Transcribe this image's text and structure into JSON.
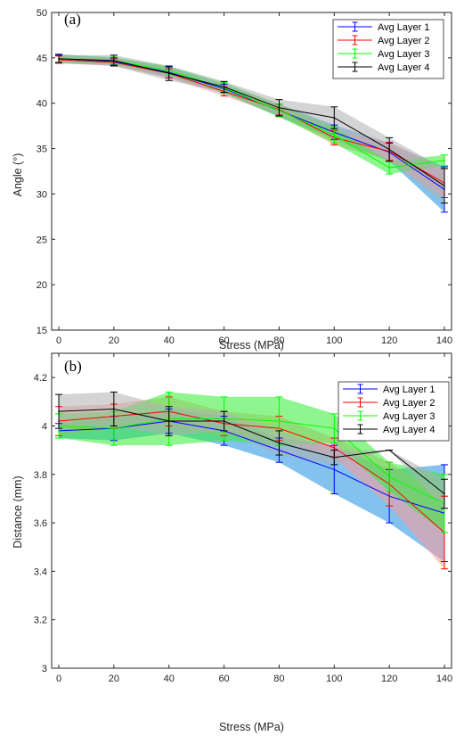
{
  "chart_data": [
    {
      "type": "line",
      "panel_label": "(a)",
      "xlabel": "Stress (MPa)",
      "ylabel": "Angle (°)",
      "xlim": [
        0,
        140
      ],
      "ylim": [
        15,
        50
      ],
      "x": [
        0,
        20,
        40,
        60,
        80,
        100,
        120,
        140
      ],
      "xticks": [
        "0",
        "20",
        "40",
        "60",
        "80",
        "100",
        "120",
        "140"
      ],
      "yticks": [
        "15",
        "20",
        "25",
        "30",
        "35",
        "40",
        "45",
        "50"
      ],
      "legend_position": "top-right",
      "series": [
        {
          "name": "Avg Layer 1",
          "color": "#0000ff",
          "band": "#1e8fe0",
          "values": [
            44.9,
            44.6,
            43.4,
            41.6,
            39.2,
            36.8,
            34.6,
            30.5
          ],
          "err": [
            0.5,
            0.4,
            0.6,
            0.5,
            0.7,
            0.8,
            1.0,
            2.5
          ]
        },
        {
          "name": "Avg Layer 2",
          "color": "#ff0000",
          "band": "#ff9a9a",
          "values": [
            44.8,
            44.5,
            43.3,
            41.3,
            39.3,
            36.2,
            34.7,
            31.2
          ],
          "err": [
            0.4,
            0.4,
            0.5,
            0.5,
            0.6,
            0.8,
            1.0,
            1.6
          ]
        },
        {
          "name": "Avg Layer 3",
          "color": "#00ff00",
          "band": "#33ee33",
          "values": [
            44.9,
            44.7,
            43.6,
            41.7,
            39.2,
            36.5,
            32.9,
            33.7
          ],
          "err": [
            0.4,
            0.4,
            0.5,
            0.6,
            0.7,
            0.9,
            0.7,
            0.6
          ]
        },
        {
          "name": "Avg Layer 4",
          "color": "#000000",
          "band": "#b0b0b0",
          "values": [
            44.9,
            44.7,
            43.3,
            41.8,
            39.5,
            38.4,
            34.9,
            30.9
          ],
          "err": [
            0.4,
            0.6,
            0.8,
            0.6,
            0.9,
            1.2,
            1.3,
            1.9
          ]
        }
      ]
    },
    {
      "type": "line",
      "panel_label": "(b)",
      "xlabel": "Stress (MPa)",
      "ylabel": "Distance (mm)",
      "xlim": [
        0,
        140
      ],
      "ylim": [
        3,
        4.3
      ],
      "x": [
        0,
        20,
        40,
        60,
        80,
        100,
        120,
        140
      ],
      "xticks": [
        "0",
        "20",
        "40",
        "60",
        "80",
        "100",
        "120",
        "140"
      ],
      "yticks": [
        "3",
        "3.2",
        "3.4",
        "3.6",
        "3.8",
        "4",
        "4.2"
      ],
      "legend_position": "top-right",
      "series": [
        {
          "name": "Avg Layer 1",
          "color": "#0000ff",
          "band": "#1e8fe0",
          "values": [
            3.98,
            3.99,
            4.02,
            3.98,
            3.9,
            3.82,
            3.71,
            3.64
          ],
          "err": [
            0.03,
            0.05,
            0.05,
            0.06,
            0.05,
            0.1,
            0.11,
            0.2
          ]
        },
        {
          "name": "Avg Layer 2",
          "color": "#ff0000",
          "band": "#ff9a9a",
          "values": [
            4.02,
            4.04,
            4.06,
            4.01,
            3.99,
            3.91,
            3.76,
            3.56
          ],
          "err": [
            0.06,
            0.05,
            0.06,
            0.05,
            0.05,
            0.04,
            0.09,
            0.15
          ]
        },
        {
          "name": "Avg Layer 3",
          "color": "#00ff00",
          "band": "#33ee33",
          "values": [
            4.0,
            3.99,
            4.03,
            4.03,
            4.02,
            3.99,
            3.79,
            3.68
          ],
          "err": [
            0.05,
            0.07,
            0.11,
            0.09,
            0.1,
            0.06,
            0.06,
            0.12
          ]
        },
        {
          "name": "Avg Layer 4",
          "color": "#000000",
          "band": "#b0b0b0",
          "values": [
            4.06,
            4.07,
            4.02,
            4.02,
            3.93,
            3.87,
            3.9,
            3.72
          ],
          "err": [
            0.07,
            0.07,
            0.06,
            0.04,
            0.05,
            0.03,
            0.0,
            0.06
          ]
        }
      ]
    }
  ]
}
